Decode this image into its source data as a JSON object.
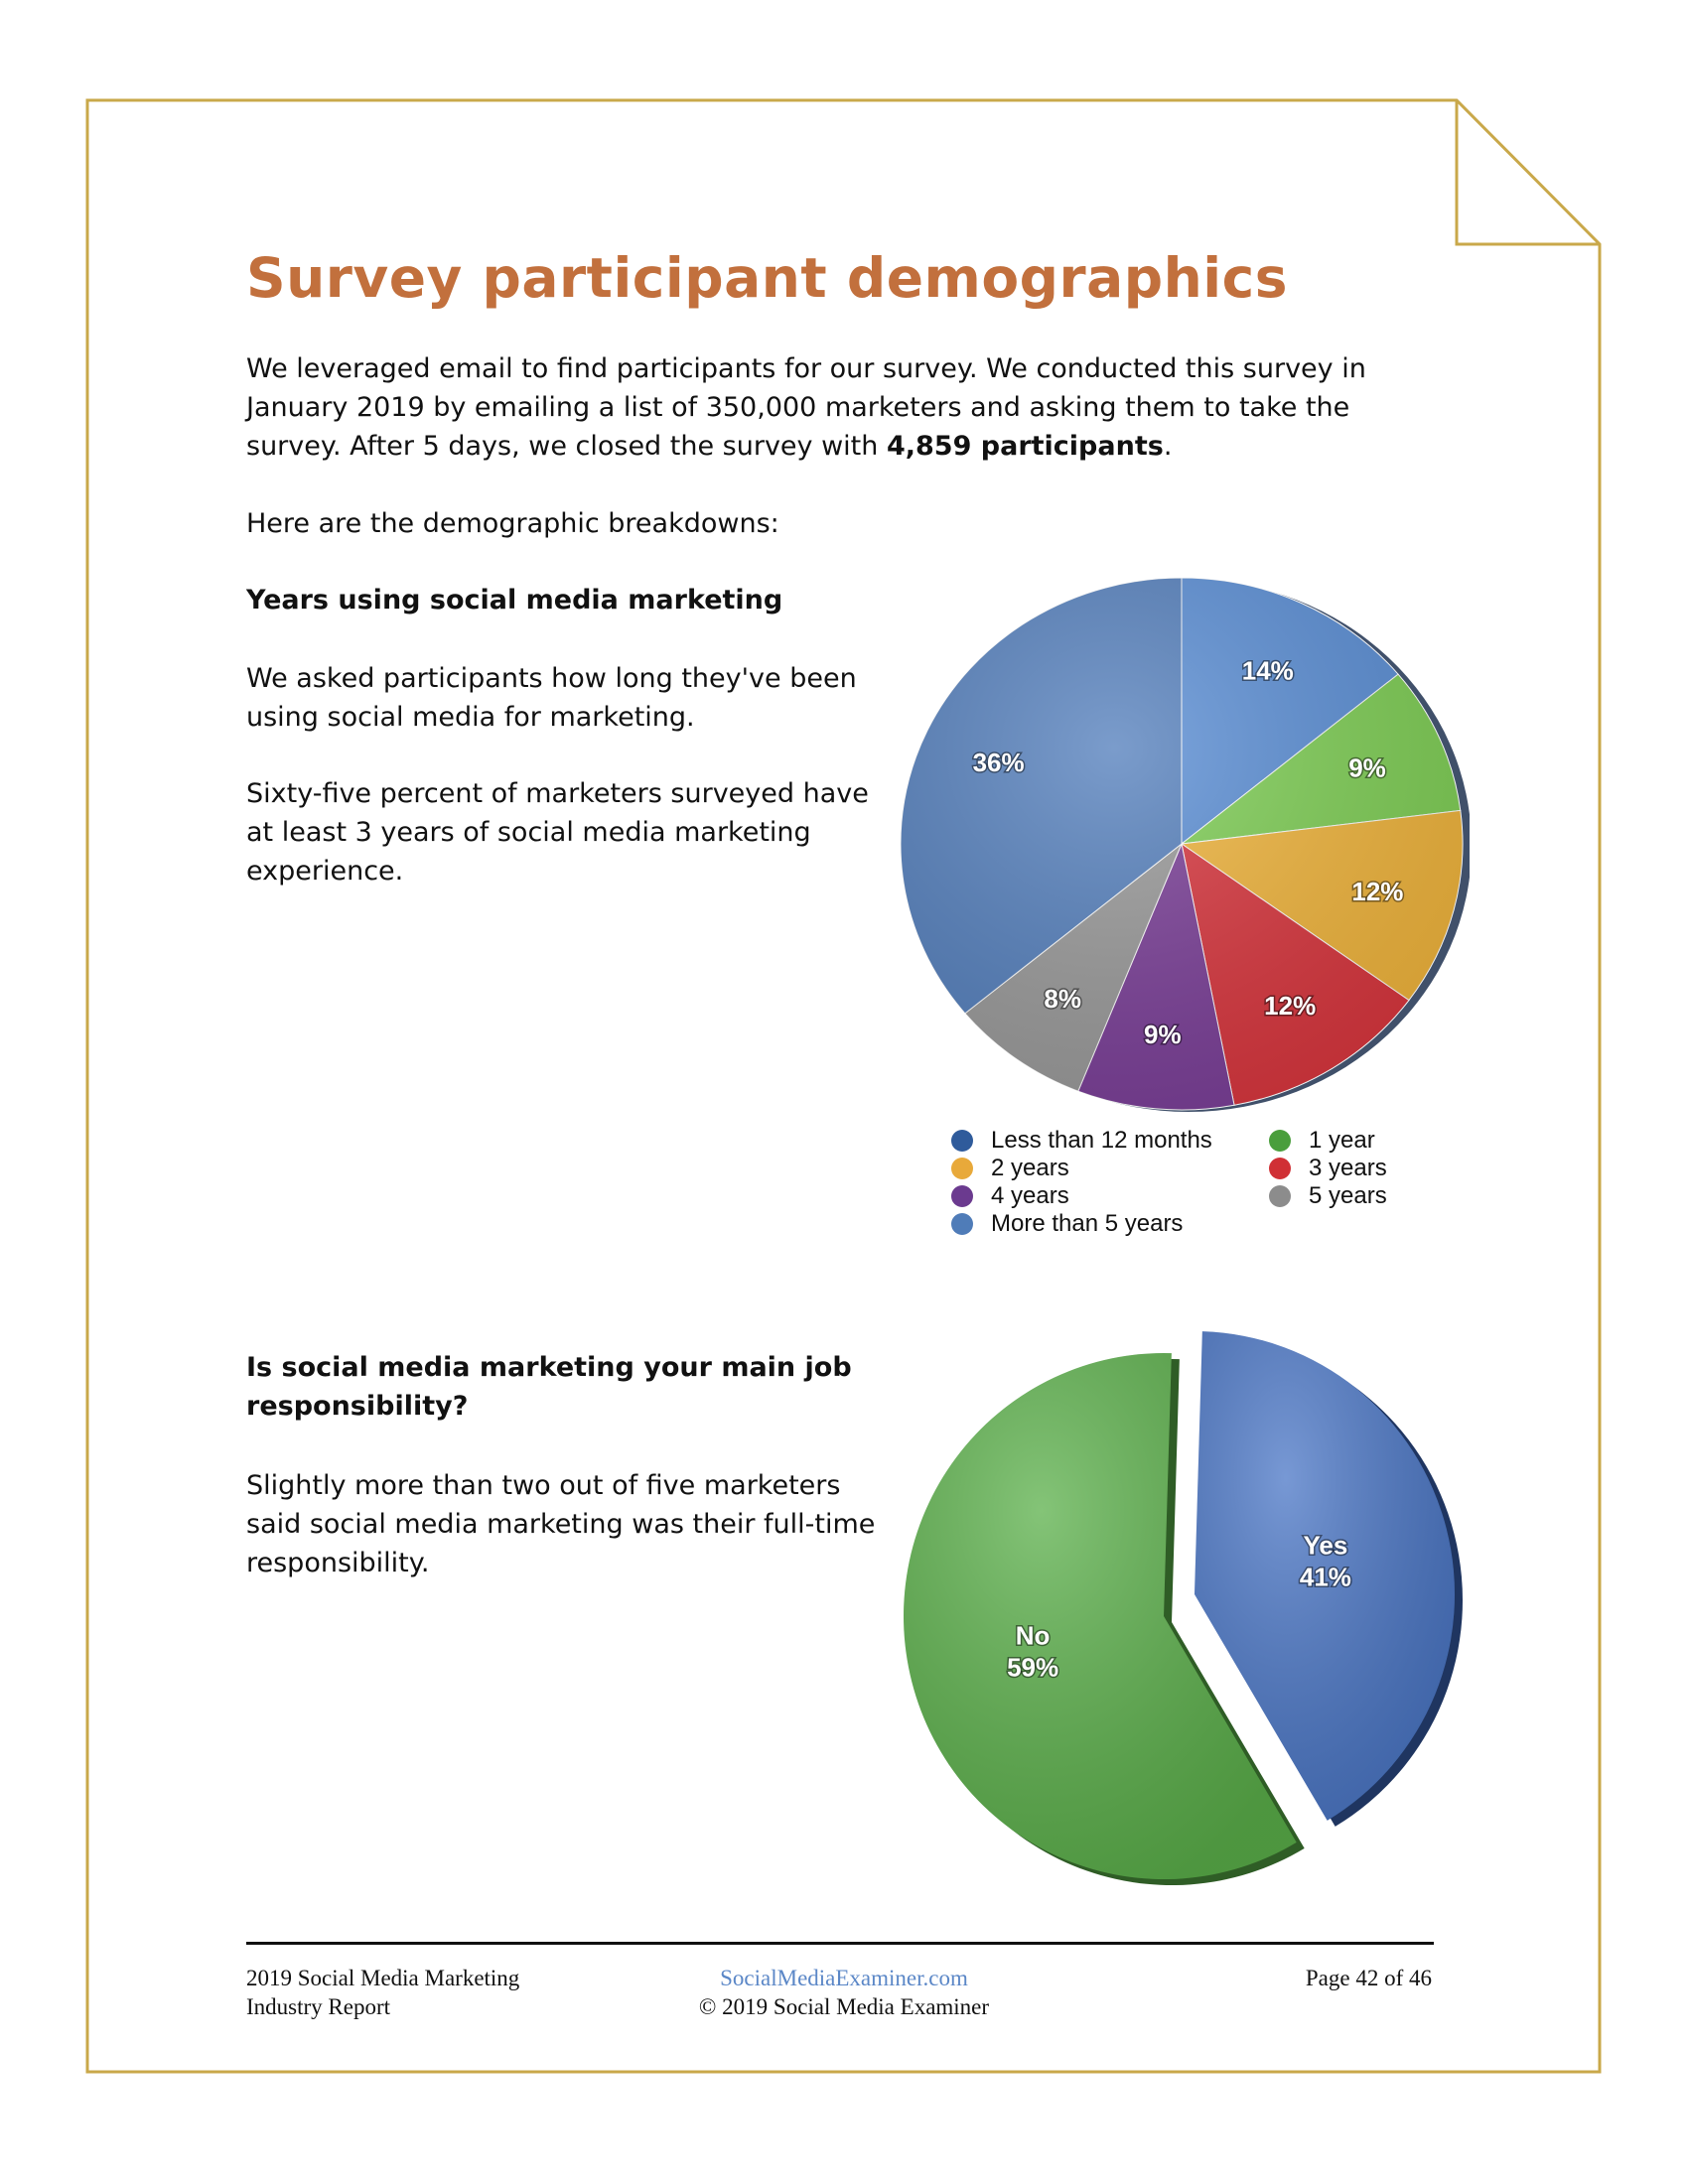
{
  "title": "Survey participant demographics",
  "intro": {
    "before": "We leveraged email to find participants for our survey. We conducted this survey in January 2019 by emailing a list of 350,000 marketers and asking them to take the survey. After 5 days, we closed the survey with ",
    "bold": "4,859 participants",
    "after": "."
  },
  "intro_2": "Here are the demographic breakdowns:",
  "section1": {
    "heading": "Years using social media marketing",
    "p1": "We asked participants how long they've been using social media for marketing.",
    "p2": "Sixty-five percent of marketers surveyed have at least 3 years of social media marketing experience."
  },
  "section2": {
    "heading": "Is social media marketing your main job responsibility?",
    "p1": "Slightly more than two out of five marketers said social media marketing was their full-time responsibility."
  },
  "footer": {
    "left_line1": "2019 Social Media Marketing",
    "left_line2": "Industry Report",
    "link": "SocialMediaExaminer.com",
    "copyright": "© 2019 Social Media Examiner",
    "page": "Page 42 of 46"
  },
  "colors": {
    "frame": "#c9a84a",
    "title": "#c2703d",
    "link": "#5b87c7"
  },
  "chart_data": [
    {
      "type": "pie",
      "title": "",
      "slices": [
        {
          "label": "Less than 12 months",
          "value": 14,
          "display": "14%",
          "color": "#5b8fd6"
        },
        {
          "label": "1 year",
          "value": 9,
          "display": "9%",
          "color": "#7fcf55"
        },
        {
          "label": "2 years",
          "value": 12,
          "display": "12%",
          "color": "#f1b53c"
        },
        {
          "label": "3 years",
          "value": 12,
          "display": "12%",
          "color": "#d9363e"
        },
        {
          "label": "4 years",
          "value": 9,
          "display": "9%",
          "color": "#7b3f98"
        },
        {
          "label": "5 years",
          "value": 8,
          "display": "8%",
          "color": "#9a9a9a"
        },
        {
          "label": "More than 5 years",
          "value": 36,
          "display": "36%",
          "color": "#5580bd"
        }
      ],
      "legend": [
        {
          "label": "Less than 12 months",
          "color": "#2f5b9b"
        },
        {
          "label": "1 year",
          "color": "#4a9e3c"
        },
        {
          "label": "2 years",
          "color": "#e8a93a"
        },
        {
          "label": "3 years",
          "color": "#d03035"
        },
        {
          "label": "4 years",
          "color": "#6b3a8f"
        },
        {
          "label": "5 years",
          "color": "#8c8c8c"
        },
        {
          "label": "More than 5 years",
          "color": "#4f7cb8"
        }
      ],
      "legend_placement": "bottom"
    },
    {
      "type": "pie",
      "title": "",
      "slices": [
        {
          "label": "Yes",
          "value": 41,
          "display": "41%",
          "color": "#4a76c6",
          "exploded": true
        },
        {
          "label": "No",
          "value": 59,
          "display": "59%",
          "color": "#5bb04a"
        }
      ]
    }
  ]
}
